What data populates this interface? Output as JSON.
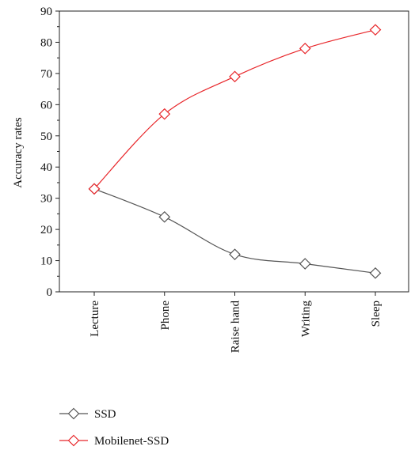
{
  "chart_data": {
    "type": "line",
    "title": "",
    "xlabel": "",
    "ylabel": "Accuracy rates",
    "categories": [
      "Lecture",
      "Phone",
      "Raise hand",
      "Writing",
      "Sleep"
    ],
    "ylim": [
      0,
      90
    ],
    "yticks": [
      0,
      10,
      20,
      30,
      40,
      50,
      60,
      70,
      80,
      90
    ],
    "grid": false,
    "legend_position": "bottom-left",
    "series": [
      {
        "name": "SSD",
        "color": "#555555",
        "marker": "diamond",
        "values": [
          33,
          24,
          12,
          9,
          6
        ]
      },
      {
        "name": "Mobilenet-SSD",
        "color": "#e8262a",
        "marker": "diamond",
        "values": [
          33,
          57,
          69,
          78,
          84
        ]
      }
    ]
  }
}
